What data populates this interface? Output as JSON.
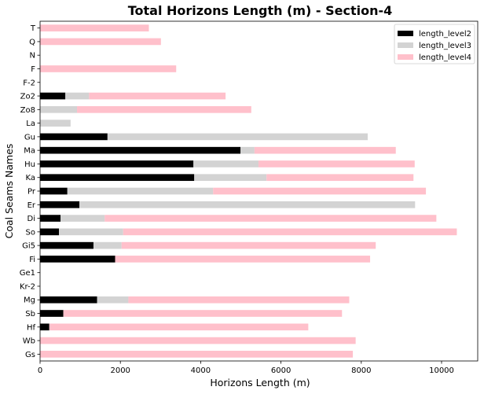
{
  "chart_data": {
    "type": "bar",
    "orientation": "horizontal",
    "stacked": true,
    "title": "Total Horizons Length (m) - Section-4",
    "xlabel": "Horizons Length (m)",
    "ylabel": "Coal Seams Names",
    "xlim": [
      0,
      10900
    ],
    "xticks": [
      0,
      2000,
      4000,
      6000,
      8000,
      10000
    ],
    "grid": false,
    "legend_position": "top-right",
    "categories": [
      "Gs",
      "Wb",
      "Hf",
      "Sb",
      "Mg",
      "Kr-2",
      "Ge1",
      "Fi",
      "Gi5",
      "So",
      "Di",
      "Er",
      "Pr",
      "Ka",
      "Hu",
      "Ma",
      "Gu",
      "La",
      "Zo8",
      "Zo2",
      "F-2",
      "F",
      "N",
      "Q",
      "T"
    ],
    "series": [
      {
        "name": "length_level2",
        "color": "#000000",
        "values": [
          0,
          0,
          230,
          580,
          1420,
          0,
          0,
          1870,
          1330,
          470,
          510,
          980,
          680,
          3840,
          3820,
          4990,
          1680,
          0,
          0,
          630,
          0,
          0,
          0,
          0,
          0
        ]
      },
      {
        "name": "length_level3",
        "color": "#d3d3d3",
        "values": [
          0,
          0,
          0,
          0,
          780,
          0,
          0,
          0,
          700,
          1600,
          1100,
          8360,
          3630,
          1800,
          1620,
          350,
          6480,
          760,
          920,
          590,
          0,
          0,
          0,
          0,
          0
        ]
      },
      {
        "name": "length_level4",
        "color": "#ffc0cb",
        "values": [
          7790,
          7860,
          6450,
          6940,
          5500,
          0,
          0,
          6350,
          6330,
          8310,
          8260,
          0,
          5300,
          3660,
          3890,
          3520,
          0,
          0,
          4340,
          3400,
          0,
          3390,
          0,
          3010,
          2710
        ]
      }
    ]
  }
}
